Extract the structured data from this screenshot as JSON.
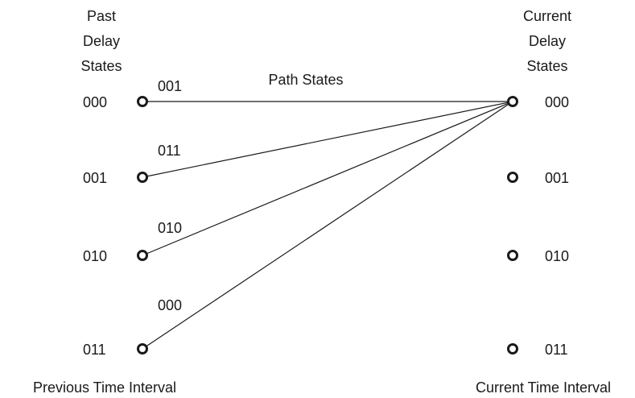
{
  "past_header": [
    "Past",
    "Delay",
    "States"
  ],
  "current_header": [
    "Current",
    "Delay",
    "States"
  ],
  "path_states_label": "Path States",
  "past_states": [
    "000",
    "001",
    "010",
    "011"
  ],
  "current_states": [
    "000",
    "001",
    "010",
    "011"
  ],
  "path_labels": [
    "001",
    "011",
    "010",
    "000"
  ],
  "previous_interval_label": "Previous Time Interval",
  "current_interval_label": "Current Time Interval"
}
